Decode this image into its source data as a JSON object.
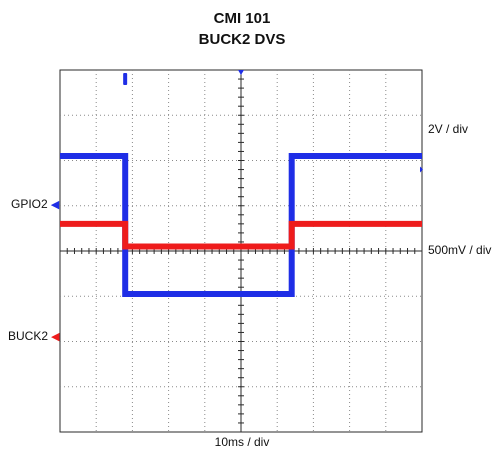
{
  "title_line1": "CMI 101",
  "title_line2": "BUCK2 DVS",
  "scale_labels": {
    "channel1": "2V / div",
    "channel2": "500mV / div",
    "time": "10ms / div"
  },
  "channel_labels": {
    "gpio": "GPIO2",
    "buck": "BUCK2"
  },
  "colors": {
    "gpio": "#1f2ee6",
    "buck": "#ee1c1c",
    "grid": "#8a8a8a",
    "frame": "#2a2a2a"
  },
  "chart_data": {
    "type": "line",
    "title": "CMI 101 BUCK2 DVS",
    "xlabel": "10ms / div",
    "grid": true,
    "x_divisions": 10,
    "y_divisions": 8,
    "x_unit": "div",
    "y_unit": "div",
    "series": [
      {
        "name": "GPIO2",
        "scale": "2V / div",
        "color": "#1f2ee6",
        "points": [
          [
            0,
            6.1
          ],
          [
            1.8,
            6.1
          ],
          [
            1.8,
            3.05
          ],
          [
            6.4,
            3.05
          ],
          [
            6.4,
            6.1
          ],
          [
            10,
            6.1
          ]
        ]
      },
      {
        "name": "BUCK2",
        "scale": "500mV / div",
        "color": "#ee1c1c",
        "points": [
          [
            0,
            4.6
          ],
          [
            1.8,
            4.6
          ],
          [
            1.8,
            4.1
          ],
          [
            6.4,
            4.1
          ],
          [
            6.4,
            4.6
          ],
          [
            10,
            4.6
          ]
        ]
      }
    ]
  }
}
